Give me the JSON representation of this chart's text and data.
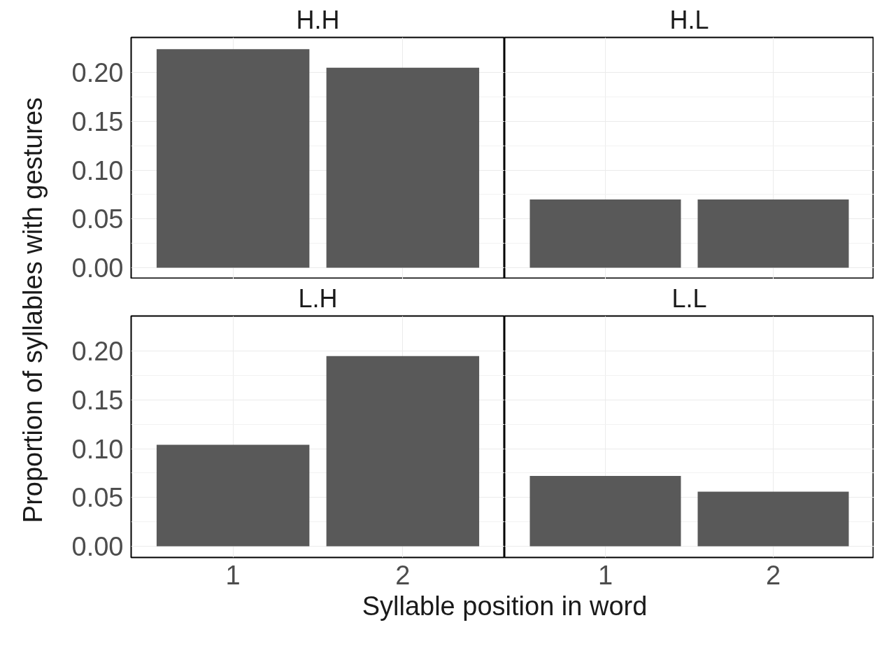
{
  "chart_data": [
    {
      "type": "bar",
      "title": "H.H",
      "ylabel": "Proportion of syllables with gestures",
      "categories": [
        "1",
        "2"
      ],
      "values": [
        0.224,
        0.205
      ],
      "color": "#595959",
      "ylim": [
        -0.0115,
        0.236
      ],
      "yticks": [
        {
          "value": 0,
          "label": "0.00"
        },
        {
          "value": 0.05,
          "label": "0.05"
        },
        {
          "value": 0.1,
          "label": "0.10"
        },
        {
          "value": 0.15,
          "label": "0.15"
        },
        {
          "value": 0.2,
          "label": "0.20"
        }
      ],
      "grid": true,
      "tick_labels": "y"
    },
    {
      "type": "bar",
      "title": "H.L",
      "categories": [
        "1",
        "2"
      ],
      "values": [
        0.07,
        0.07
      ],
      "color": "#595959",
      "ylim": [
        -0.0115,
        0.236
      ],
      "yticks": [
        {
          "value": 0,
          "label": null
        },
        {
          "value": 0.05,
          "label": null
        },
        {
          "value": 0.1,
          "label": null
        },
        {
          "value": 0.15,
          "label": null
        },
        {
          "value": 0.2,
          "label": null
        }
      ],
      "grid": true,
      "tick_labels": false
    },
    {
      "type": "bar",
      "title": "L.H",
      "xlabel": "Syllable position in word",
      "categories": [
        "1",
        "2"
      ],
      "values": [
        0.104,
        0.195
      ],
      "color": "#595959",
      "ylim": [
        -0.0115,
        0.236
      ],
      "yticks": [
        {
          "value": 0,
          "label": "0.00"
        },
        {
          "value": 0.05,
          "label": "0.05"
        },
        {
          "value": 0.1,
          "label": "0.10"
        },
        {
          "value": 0.15,
          "label": "0.15"
        },
        {
          "value": 0.2,
          "label": "0.20"
        }
      ],
      "grid": true
    },
    {
      "type": "bar",
      "title": "L.L",
      "categories": [
        "1",
        "2"
      ],
      "values": [
        0.072,
        0.056
      ],
      "color": "#595959",
      "ylim": [
        -0.0115,
        0.236
      ],
      "yticks": [
        {
          "value": 0,
          "label": null
        },
        {
          "value": 0.05,
          "label": null
        },
        {
          "value": 0.1,
          "label": null
        },
        {
          "value": 0.15,
          "label": null
        },
        {
          "value": 0.2,
          "label": null
        }
      ],
      "grid": true,
      "tick_labels": "x"
    }
  ]
}
